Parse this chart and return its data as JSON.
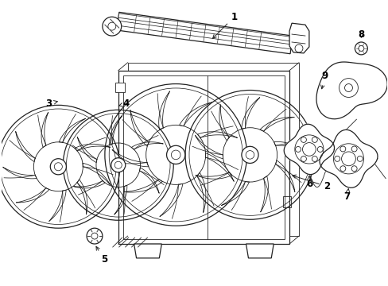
{
  "background_color": "#ffffff",
  "line_color": "#222222",
  "label_color": "#000000",
  "figsize": [
    4.89,
    3.6
  ],
  "dpi": 100
}
